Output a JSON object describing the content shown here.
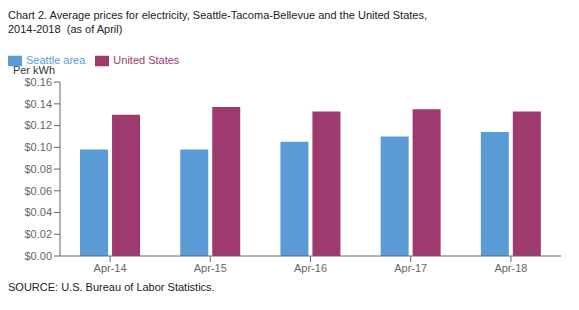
{
  "chart_data": {
    "type": "bar",
    "title": "Chart 2. Average prices for electricity, Seattle-Tacoma-Bellevue and the United States,",
    "subtitle": "2014-2018  (as of April)",
    "ylabel": "Per kWh",
    "annotations": [
      "SOURCE: U.S. Bureau of Labor Statistics."
    ],
    "categories": [
      "Apr-14",
      "Apr-15",
      "Apr-16",
      "Apr-17",
      "Apr-18"
    ],
    "series": [
      {
        "name": "Seattle area",
        "color": "#5B9BD5",
        "values": [
          0.098,
          0.098,
          0.105,
          0.11,
          0.114
        ]
      },
      {
        "name": "United States",
        "color": "#9E3A6E",
        "values": [
          0.13,
          0.137,
          0.133,
          0.135,
          0.133
        ]
      }
    ],
    "ylim": [
      0.0,
      0.16
    ],
    "yticks": [
      {
        "value": 0.0,
        "label": "$0.00"
      },
      {
        "value": 0.02,
        "label": "$0.02"
      },
      {
        "value": 0.04,
        "label": "$0.04"
      },
      {
        "value": 0.06,
        "label": "$0.06"
      },
      {
        "value": 0.08,
        "label": "$0.08"
      },
      {
        "value": 0.1,
        "label": "$0.10"
      },
      {
        "value": 0.12,
        "label": "$0.12"
      },
      {
        "value": 0.14,
        "label": "$0.14"
      },
      {
        "value": 0.16,
        "label": "$0.16"
      }
    ],
    "grid": false,
    "legend": "upper left"
  }
}
